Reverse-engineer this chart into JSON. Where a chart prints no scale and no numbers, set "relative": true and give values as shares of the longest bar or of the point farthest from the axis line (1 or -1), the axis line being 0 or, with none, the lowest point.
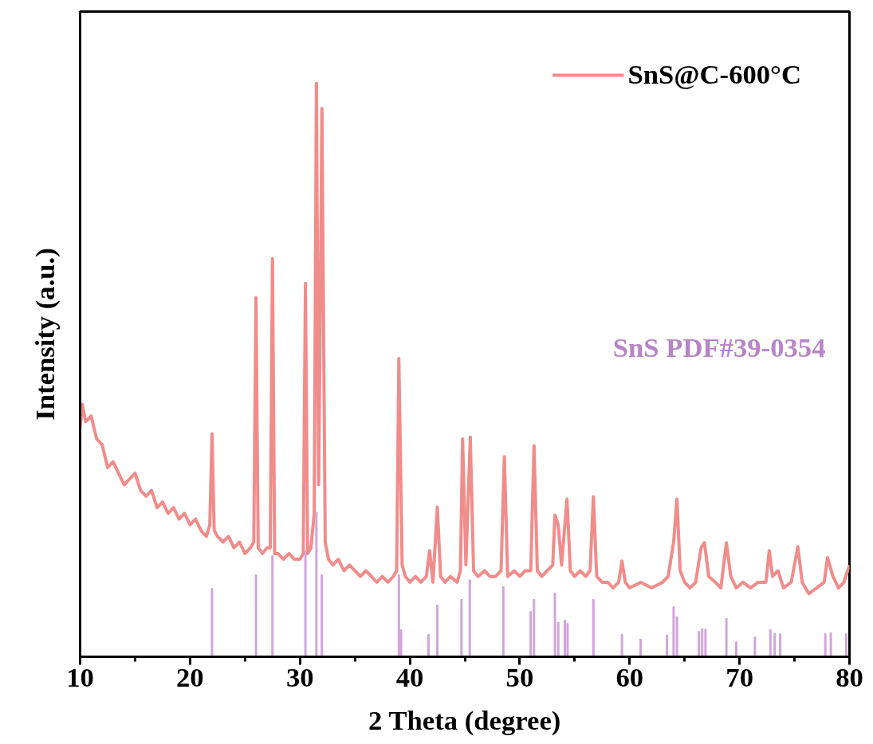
{
  "chart_data": {
    "type": "line",
    "relative": true,
    "xlabel": "2 Theta (degree)",
    "ylabel": "Intensity (a.u.)",
    "xlim": [
      10,
      80
    ],
    "xticks": [
      10,
      {
        "value": 15,
        "label": null
      },
      20,
      {
        "value": 25,
        "label": null
      },
      30,
      {
        "value": 35,
        "label": null
      },
      40,
      {
        "value": 45,
        "label": null
      },
      50,
      {
        "value": 55,
        "label": null
      },
      60,
      {
        "value": 65,
        "label": null
      },
      70,
      {
        "value": 75,
        "label": null
      },
      80
    ],
    "tick_labels": "x",
    "grid": false,
    "legend": "top right",
    "line_style": "solid",
    "marker": "none",
    "series": [
      {
        "name": "SnS@C-600°C",
        "color": "#f08c8a",
        "x": [
          10.0,
          10.2,
          10.5,
          11,
          11.5,
          12,
          12.5,
          13,
          13.5,
          14,
          14.5,
          15,
          15.5,
          16,
          16.5,
          17,
          17.5,
          18,
          18.5,
          19,
          19.5,
          20,
          20.5,
          21,
          21.5,
          21.8,
          22.0,
          22.2,
          22.5,
          23,
          23.5,
          24,
          24.5,
          25,
          25.5,
          25.8,
          26.0,
          26.2,
          26.6,
          27,
          27.3,
          27.5,
          27.7,
          28,
          28.5,
          29,
          29.5,
          30,
          30.3,
          30.5,
          30.7,
          31,
          31.3,
          31.5,
          31.7,
          31.8,
          32.0,
          32.3,
          32.6,
          33,
          33.5,
          34,
          34.5,
          35,
          35.5,
          36,
          36.5,
          37,
          37.5,
          38,
          38.5,
          38.8,
          39.0,
          39.3,
          39.6,
          40,
          40.5,
          41,
          41.5,
          41.8,
          42.1,
          42.5,
          42.8,
          43.2,
          43.7,
          44.3,
          44.6,
          44.8,
          45.1,
          45.5,
          45.8,
          46.2,
          46.8,
          47.3,
          47.8,
          48.3,
          48.6,
          48.9,
          49.5,
          50,
          50.5,
          51,
          51.3,
          51.6,
          52,
          52.5,
          53.0,
          53.2,
          53.5,
          53.8,
          54.3,
          54.6,
          55,
          55.5,
          56,
          56.4,
          56.7,
          57,
          57.5,
          58,
          58.5,
          59,
          59.3,
          59.6,
          60,
          61,
          62,
          63,
          63.5,
          64.0,
          64.3,
          64.6,
          65,
          65.5,
          66,
          66.5,
          66.8,
          67.2,
          67.8,
          68.3,
          68.8,
          69.2,
          69.7,
          70.3,
          71,
          71.7,
          72.4,
          72.7,
          73,
          73.5,
          74,
          74.7,
          75.3,
          75.7,
          76.3,
          77,
          77.7,
          78.0,
          78.5,
          79,
          79.5,
          80
        ],
        "values": [
          0.4,
          0.44,
          0.41,
          0.42,
          0.38,
          0.37,
          0.33,
          0.34,
          0.32,
          0.3,
          0.31,
          0.32,
          0.29,
          0.28,
          0.29,
          0.26,
          0.27,
          0.25,
          0.26,
          0.24,
          0.25,
          0.23,
          0.24,
          0.22,
          0.21,
          0.23,
          0.389,
          0.22,
          0.21,
          0.2,
          0.21,
          0.19,
          0.2,
          0.18,
          0.19,
          0.2,
          0.626,
          0.19,
          0.18,
          0.19,
          0.19,
          0.694,
          0.18,
          0.18,
          0.17,
          0.18,
          0.17,
          0.17,
          0.18,
          0.651,
          0.18,
          0.19,
          0.25,
          1.0,
          0.3,
          0.5,
          0.956,
          0.2,
          0.17,
          0.16,
          0.17,
          0.15,
          0.16,
          0.15,
          0.14,
          0.15,
          0.14,
          0.13,
          0.14,
          0.13,
          0.14,
          0.15,
          0.52,
          0.16,
          0.14,
          0.13,
          0.14,
          0.13,
          0.14,
          0.185,
          0.13,
          0.261,
          0.14,
          0.13,
          0.14,
          0.13,
          0.15,
          0.38,
          0.16,
          0.383,
          0.15,
          0.14,
          0.15,
          0.14,
          0.14,
          0.15,
          0.349,
          0.14,
          0.15,
          0.14,
          0.15,
          0.15,
          0.368,
          0.15,
          0.14,
          0.15,
          0.16,
          0.247,
          0.23,
          0.16,
          0.275,
          0.15,
          0.14,
          0.15,
          0.14,
          0.15,
          0.279,
          0.14,
          0.13,
          0.13,
          0.12,
          0.13,
          0.167,
          0.13,
          0.12,
          0.13,
          0.12,
          0.13,
          0.14,
          0.2,
          0.275,
          0.15,
          0.13,
          0.12,
          0.13,
          0.19,
          0.199,
          0.14,
          0.13,
          0.12,
          0.199,
          0.14,
          0.12,
          0.13,
          0.12,
          0.13,
          0.13,
          0.185,
          0.14,
          0.15,
          0.12,
          0.13,
          0.192,
          0.13,
          0.11,
          0.12,
          0.13,
          0.173,
          0.14,
          0.12,
          0.13,
          0.16
        ]
      },
      {
        "name": "SnS PDF#39-0354",
        "type": "bar",
        "color": "#cfa3d8",
        "x": [
          22.0,
          26.0,
          27.5,
          30.5,
          31.5,
          32.0,
          39.0,
          39.2,
          41.7,
          42.5,
          44.7,
          45.45,
          48.5,
          51.0,
          51.3,
          53.2,
          53.5,
          54.1,
          54.35,
          56.7,
          59.3,
          61.0,
          63.4,
          64.0,
          64.3,
          66.3,
          66.6,
          66.9,
          68.8,
          69.7,
          71.4,
          72.8,
          73.2,
          73.7,
          77.8,
          78.3,
          79.7
        ],
        "values": [
          0.119,
          0.143,
          0.176,
          0.185,
          0.252,
          0.143,
          0.143,
          0.047,
          0.039,
          0.09,
          0.1,
          0.134,
          0.122,
          0.079,
          0.1,
          0.111,
          0.06,
          0.064,
          0.058,
          0.1,
          0.039,
          0.031,
          0.038,
          0.087,
          0.07,
          0.044,
          0.049,
          0.048,
          0.067,
          0.026,
          0.035,
          0.047,
          0.041,
          0.04,
          0.04,
          0.042,
          0.04
        ]
      }
    ]
  }
}
